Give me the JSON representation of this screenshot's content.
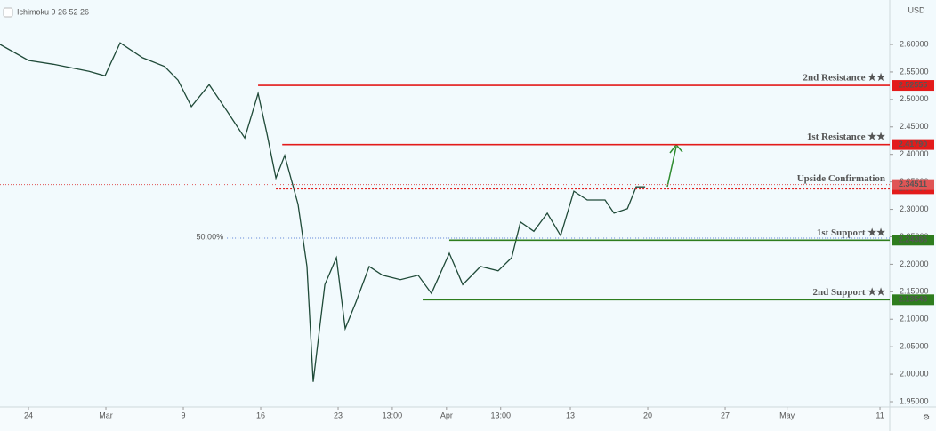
{
  "chart_data": {
    "type": "line",
    "indicator": "Ichimoku 9 26 52 26",
    "currency": "USD",
    "x": [
      -1.84,
      0,
      1.61,
      3.91,
      4.94,
      5.92,
      7.36,
      8.79,
      9.66,
      10.52,
      11.67,
      12.82,
      13.97,
      14.83,
      15.4,
      15.98,
      16.55,
      17.41,
      17.99,
      18.39,
      19.14,
      19.89,
      20.46,
      21.15,
      22.01,
      22.87,
      24.02,
      25.17,
      26.03,
      27.18,
      28.05,
      29.2,
      30.34,
      31.21,
      31.78,
      32.64,
      33.51,
      34.37,
      35.23,
      36.09,
      37.24,
      37.82,
      38.68,
      39.25,
      39.83
    ],
    "values": [
      2.6,
      2.571,
      2.564,
      2.551,
      2.543,
      2.603,
      2.576,
      2.56,
      2.535,
      2.487,
      2.527,
      2.479,
      2.43,
      2.511,
      2.438,
      2.357,
      2.398,
      2.309,
      2.196,
      1.986,
      2.163,
      2.212,
      2.083,
      2.131,
      2.196,
      2.18,
      2.172,
      2.18,
      2.147,
      2.22,
      2.163,
      2.196,
      2.188,
      2.212,
      2.277,
      2.26,
      2.293,
      2.252,
      2.333,
      2.317,
      2.317,
      2.293,
      2.301,
      2.341,
      2.341
    ],
    "color": "#1f4a38",
    "xlim": [
      -1.84,
      55.63
    ],
    "ylim": [
      1.9403,
      2.6728
    ],
    "xticks": [
      {
        "value": 0,
        "label": "24"
      },
      {
        "value": 5,
        "label": "Mar"
      },
      {
        "value": 10,
        "label": "9"
      },
      {
        "value": 15,
        "label": "16"
      },
      {
        "value": 20,
        "label": "23"
      },
      {
        "value": 23.5,
        "label": "13:00"
      },
      {
        "value": 27,
        "label": "Apr"
      },
      {
        "value": 30.5,
        "label": "13:00"
      },
      {
        "value": 35,
        "label": "13"
      },
      {
        "value": 40,
        "label": "20"
      },
      {
        "value": 45,
        "label": "27"
      },
      {
        "value": 49,
        "label": "May"
      },
      {
        "value": 55,
        "label": "11"
      }
    ],
    "yticks": [
      {
        "value": 1.95,
        "label": "1.95000"
      },
      {
        "value": 2.0,
        "label": "2.00000"
      },
      {
        "value": 2.05,
        "label": "2.05000"
      },
      {
        "value": 2.1,
        "label": "2.10000"
      },
      {
        "value": 2.15,
        "label": "2.15000"
      },
      {
        "value": 2.2,
        "label": "2.20000"
      },
      {
        "value": 2.25,
        "label": "2.25000"
      },
      {
        "value": 2.3,
        "label": "2.30000"
      },
      {
        "value": 2.35,
        "label": "2.35000"
      },
      {
        "value": 2.4,
        "label": "2.40000"
      },
      {
        "value": 2.45,
        "label": "2.45000"
      },
      {
        "value": 2.5,
        "label": "2.50000"
      },
      {
        "value": 2.55,
        "label": "2.55000"
      },
      {
        "value": 2.6,
        "label": "2.60000"
      }
    ],
    "levels": {
      "labels": [
        "2nd Resistance ★★",
        "1st Resistance ★★",
        "Upside Confirmation",
        "1st Support ★★",
        "2nd Support ★★"
      ],
      "values": [
        2.52555,
        2.4179,
        2.3375,
        2.24386,
        2.13543
      ],
      "value_labels": [
        "2.52555",
        "2.41790",
        "2.33750",
        "2.24386",
        "2.13543"
      ],
      "colors": [
        "#e31b1b",
        "#e31b1b",
        "#e31b1b",
        "#2e7d1e",
        "#2e7d1e"
      ],
      "styles": [
        "solid",
        "solid",
        "dotted",
        "solid",
        "solid"
      ],
      "x_start": [
        14.83,
        16.39,
        15.98,
        27.18,
        25.46
      ]
    },
    "last_price": 2.34511,
    "last_price_color": "#e05555",
    "fib": {
      "label": "50.00%",
      "value": 2.2475,
      "x_start": 12.82,
      "color": "#5a7fd6"
    }
  }
}
